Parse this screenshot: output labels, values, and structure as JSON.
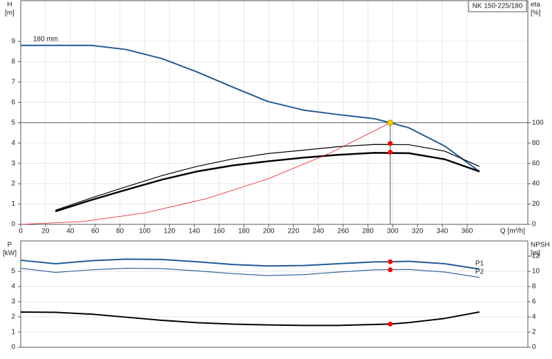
{
  "chart_data": [
    {
      "type": "line",
      "title": "NK 150-225/180",
      "ylabel": "H",
      "yunit": "[m]",
      "y2label": "eta",
      "y2unit": "[%]",
      "xlabel": "Q [m³/h]",
      "curve_label": "180 mm",
      "xlim": [
        0,
        409
      ],
      "xticks": [
        0,
        20,
        40,
        60,
        80,
        100,
        120,
        140,
        160,
        180,
        200,
        220,
        240,
        260,
        280,
        300,
        320,
        340,
        360
      ],
      "ylim": [
        0,
        11
      ],
      "yticks": [
        0,
        1,
        2,
        3,
        4,
        5,
        6,
        7,
        8,
        9
      ],
      "y2lim": [
        0,
        220
      ],
      "y2ticks": [
        0,
        20,
        40,
        60,
        80,
        100
      ],
      "grid": true,
      "series": [
        {
          "color": "#1f5a96",
          "width": 2,
          "x": [
            0,
            28,
            57,
            85,
            114,
            142,
            171,
            199,
            228,
            256,
            285,
            298,
            313,
            342,
            370
          ],
          "values": [
            8.8,
            8.8,
            8.8,
            8.6,
            8.15,
            7.5,
            6.75,
            6.05,
            5.62,
            5.4,
            5.2,
            5.0,
            4.75,
            3.85,
            2.6
          ]
        },
        {
          "color": "#000000",
          "width": 2.5,
          "axis": "y2",
          "x": [
            28,
            57,
            85,
            114,
            142,
            171,
            199,
            228,
            256,
            285,
            313,
            342,
            370
          ],
          "values": [
            12.8,
            24,
            34,
            44,
            52,
            58,
            62,
            65.6,
            68.4,
            70.4,
            70,
            64,
            52
          ]
        },
        {
          "color": "#000000",
          "width": 1.2,
          "axis": "y2",
          "x": [
            28,
            57,
            85,
            114,
            142,
            171,
            199,
            228,
            256,
            285,
            313,
            342,
            370
          ],
          "values": [
            14,
            26,
            37,
            48,
            57,
            64.4,
            69.6,
            73,
            76.4,
            78.6,
            78.4,
            72,
            57
          ]
        },
        {
          "color": "#e8141b",
          "width": 0.8,
          "x": [
            0,
            50,
            100,
            150,
            200,
            250,
            298
          ],
          "values": [
            0,
            0.14,
            0.56,
            1.27,
            2.25,
            3.52,
            5.0
          ]
        },
        {
          "style": "dots",
          "color": "#ff0000",
          "axis": "y2",
          "x": [
            298,
            298
          ],
          "values": [
            79.6,
            71
          ]
        }
      ],
      "operating_point": {
        "x": 298,
        "value": 5.0,
        "color": "#f5d000"
      }
    },
    {
      "type": "line",
      "ylabel": "P",
      "yunit": "[kW]",
      "y2label": "NPSH",
      "y2unit": "[m]",
      "xlim": [
        0,
        409
      ],
      "ylim": [
        0,
        7
      ],
      "yticks": [
        0,
        1,
        2,
        3,
        4,
        5
      ],
      "y2lim": [
        0,
        14
      ],
      "y2ticks": [
        0,
        2,
        4,
        6,
        8,
        10,
        12
      ],
      "grid": true,
      "series": [
        {
          "name": "P1",
          "color": "#1f5a96",
          "width": 2,
          "x": [
            0,
            28,
            57,
            85,
            114,
            142,
            171,
            199,
            228,
            256,
            285,
            298,
            313,
            342,
            370
          ],
          "values": [
            5.73,
            5.5,
            5.7,
            5.8,
            5.78,
            5.63,
            5.45,
            5.35,
            5.38,
            5.5,
            5.62,
            5.63,
            5.66,
            5.5,
            5.15
          ]
        },
        {
          "name": "P2",
          "color": "#1f5a96",
          "width": 1.1,
          "x": [
            0,
            28,
            57,
            85,
            114,
            142,
            171,
            199,
            228,
            256,
            285,
            313,
            342,
            370
          ],
          "values": [
            5.2,
            4.93,
            5.1,
            5.2,
            5.18,
            5.03,
            4.85,
            4.72,
            4.78,
            4.95,
            5.1,
            5.12,
            4.95,
            4.6
          ]
        },
        {
          "color": "#000000",
          "width": 2,
          "axis": "y2",
          "x": [
            0,
            28,
            57,
            85,
            114,
            142,
            171,
            199,
            228,
            256,
            285,
            298,
            313,
            342,
            370
          ],
          "values": [
            4.64,
            4.6,
            4.36,
            3.96,
            3.55,
            3.24,
            3.04,
            2.94,
            2.88,
            2.88,
            3.0,
            3.06,
            3.25,
            3.8,
            4.65
          ]
        },
        {
          "style": "dots",
          "color": "#ff0000",
          "x": [
            298,
            298
          ],
          "values": [
            5.63,
            5.1
          ]
        },
        {
          "style": "dots",
          "color": "#ff0000",
          "axis": "y2",
          "x": [
            298
          ],
          "values": [
            3.06
          ]
        }
      ]
    }
  ]
}
